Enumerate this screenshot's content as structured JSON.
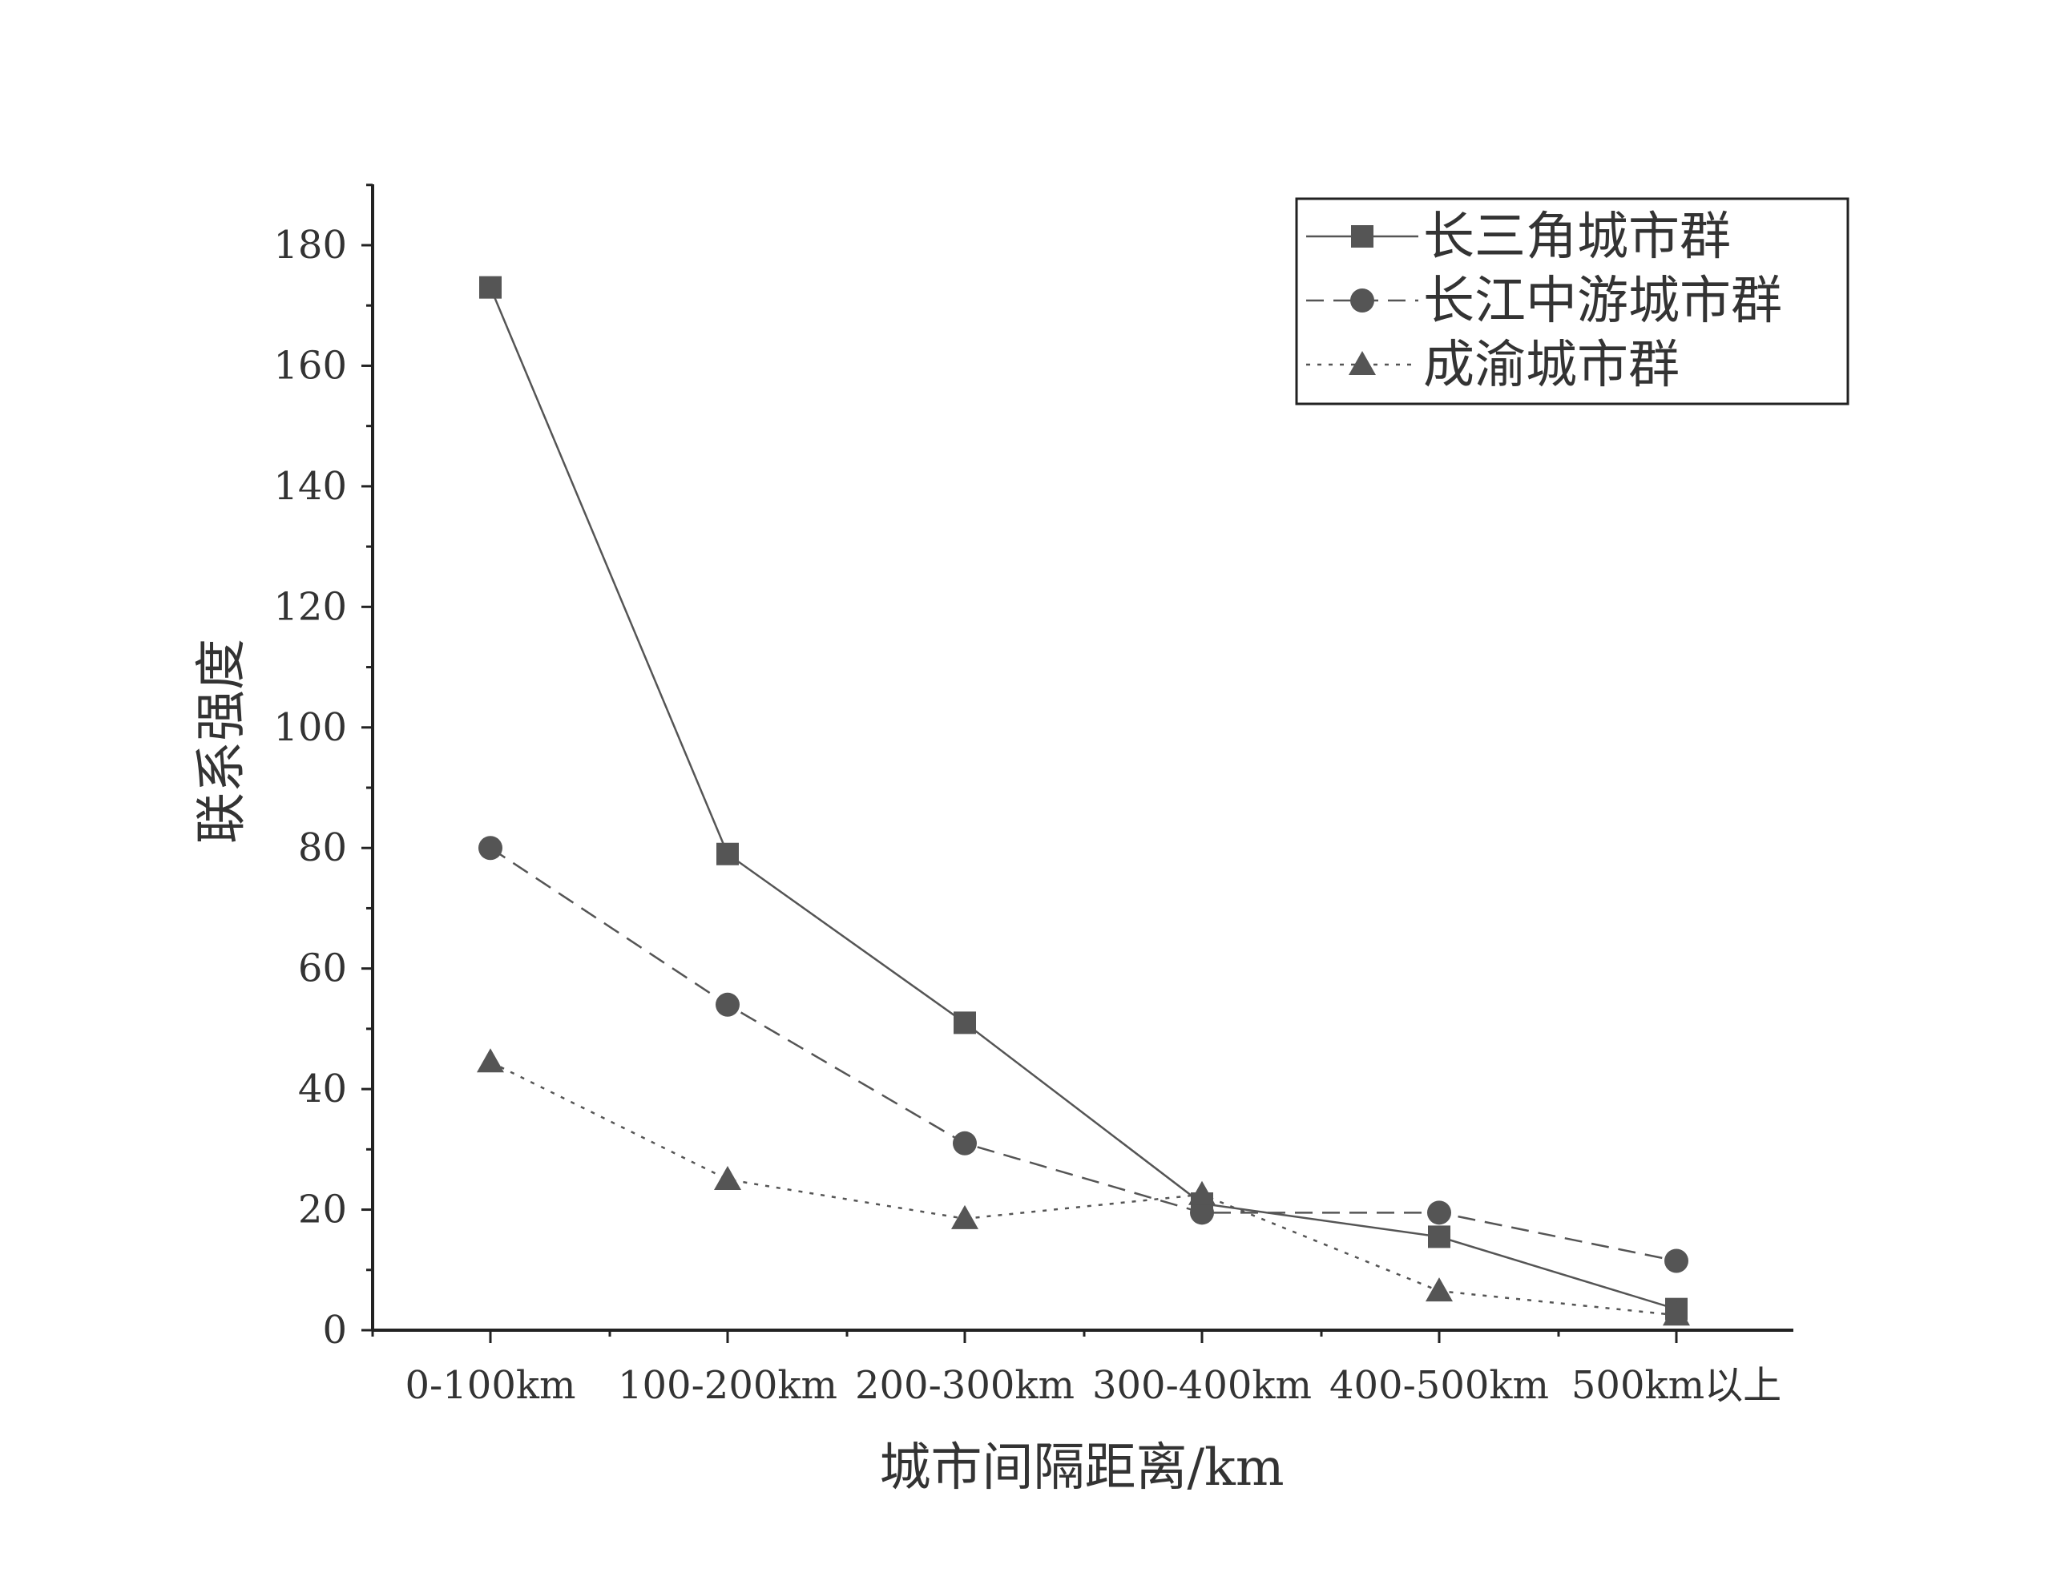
{
  "chart_data": {
    "type": "line",
    "title": "",
    "xlabel": "城市间隔距离/km",
    "ylabel": "联系强度",
    "categories": [
      "0-100km",
      "100-200km",
      "200-300km",
      "300-400km",
      "400-500km",
      "500km以上"
    ],
    "ylim": [
      0,
      190
    ],
    "yticks": [
      0,
      20,
      40,
      60,
      80,
      100,
      120,
      140,
      160,
      180
    ],
    "grid": false,
    "legend_position": "top-right",
    "series": [
      {
        "name": "长三角城市群",
        "values": [
          173,
          79,
          51,
          21,
          15.5,
          3.5
        ],
        "marker": "square",
        "line_style": "solid",
        "color": "#555555"
      },
      {
        "name": "长江中游城市群",
        "values": [
          80,
          54,
          31,
          19.5,
          19.5,
          11.5
        ],
        "marker": "circle",
        "line_style": "dashed",
        "color": "#555555"
      },
      {
        "name": "成渝城市群",
        "values": [
          44.5,
          25,
          18.5,
          22.5,
          6.5,
          2.5
        ],
        "marker": "triangle",
        "line_style": "dotted",
        "color": "#555555"
      }
    ]
  }
}
